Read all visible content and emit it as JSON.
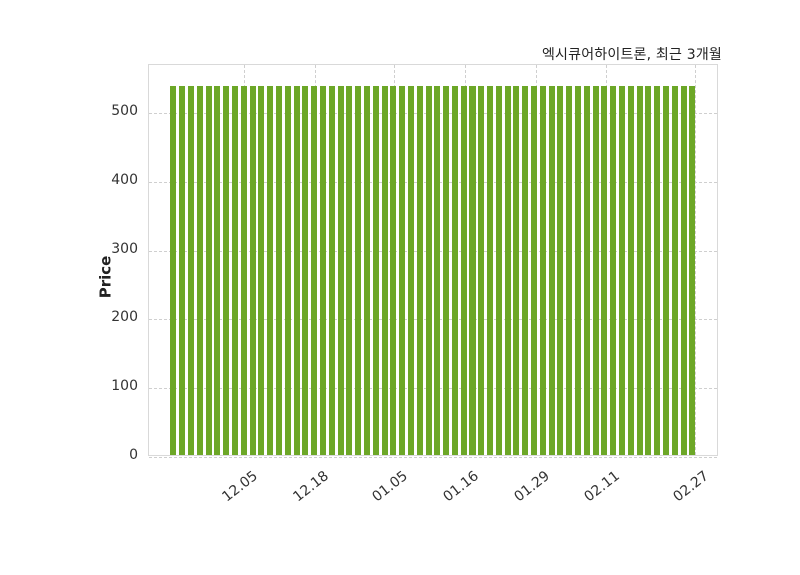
{
  "chart_data": {
    "type": "bar",
    "title": "엑시큐어하이트론, 최근 3개월",
    "xlabel": "",
    "ylabel": "Price",
    "bar_color": "#6CA727",
    "grid": true,
    "grid_style": "dashed",
    "legend": "none",
    "ylim": [
      0,
      570
    ],
    "y_ticks": [
      0,
      100,
      200,
      300,
      400,
      500
    ],
    "num_bars": 60,
    "bar_value": 540,
    "values": [
      540,
      540,
      540,
      540,
      540,
      540,
      540,
      540,
      540,
      540,
      540,
      540,
      540,
      540,
      540,
      540,
      540,
      540,
      540,
      540,
      540,
      540,
      540,
      540,
      540,
      540,
      540,
      540,
      540,
      540,
      540,
      540,
      540,
      540,
      540,
      540,
      540,
      540,
      540,
      540,
      540,
      540,
      540,
      540,
      540,
      540,
      540,
      540,
      540,
      540,
      540,
      540,
      540,
      540,
      540,
      540,
      540,
      540,
      540,
      540
    ],
    "x_ticks": [
      {
        "label": "12.05",
        "index": 8
      },
      {
        "label": "12.18",
        "index": 16
      },
      {
        "label": "01.05",
        "index": 25
      },
      {
        "label": "01.16",
        "index": 33
      },
      {
        "label": "01.29",
        "index": 41
      },
      {
        "label": "02.11",
        "index": 49
      },
      {
        "label": "02.27",
        "index": 59
      }
    ]
  }
}
